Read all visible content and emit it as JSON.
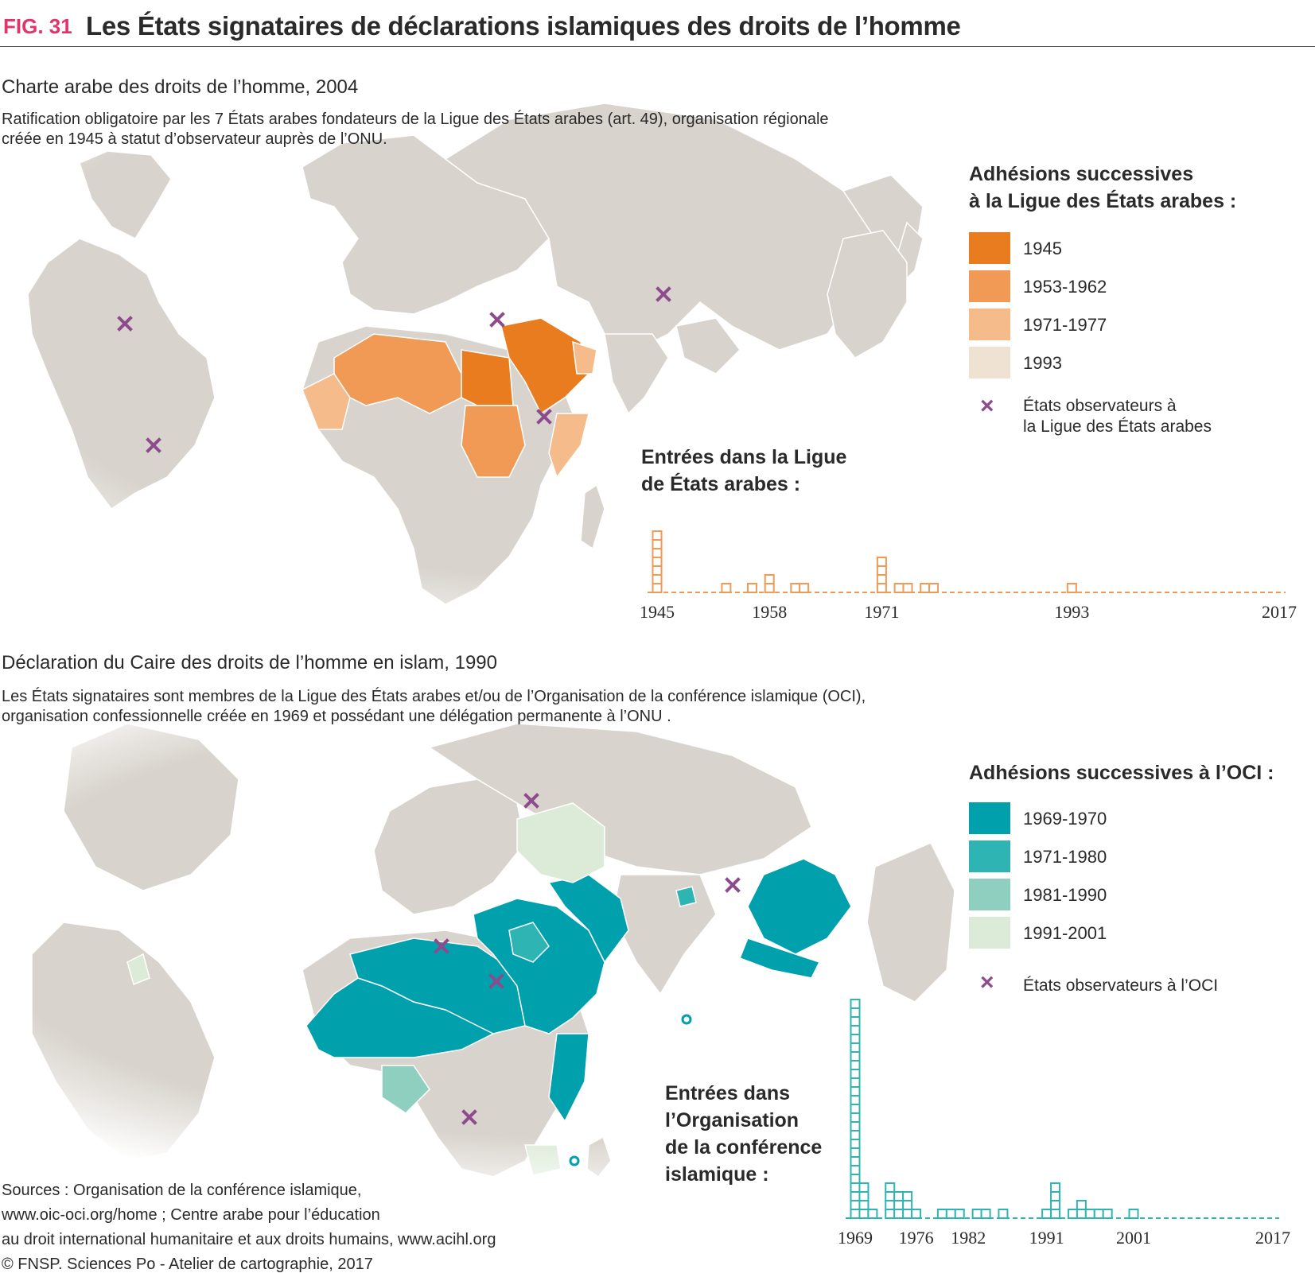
{
  "header": {
    "fig_label": "FIG. 31",
    "title": "Les États signataires de déclarations islamiques des droits de l’homme"
  },
  "section1": {
    "title": "Charte arabe des droits de l’homme, 2004",
    "desc_line1": "Ratification obligatoire par les 7 États arabes fondateurs de la Ligue des États arabes (art. 49), organisation régionale",
    "desc_line2": "créée en 1945 à statut d’observateur auprès de l’ONU.",
    "legend_title_line1": "Adhésions successives",
    "legend_title_line2": "à la Ligue des États arabes :",
    "legend_items": [
      {
        "label": "1945",
        "color": "#e87c1e"
      },
      {
        "label": "1953-1962",
        "color": "#f09a55"
      },
      {
        "label": "1971-1977",
        "color": "#f5bb8b"
      },
      {
        "label": "1993",
        "color": "#f0e2d2"
      }
    ],
    "observer_label_line1": "États observateurs à",
    "observer_label_line2": "la Ligue des États arabes",
    "map_colors": {
      "land": "#d8d3cc",
      "observer": "#8d4b8e"
    }
  },
  "section2": {
    "title": "Déclaration du Caire des droits de l’homme en islam, 1990",
    "desc_line1": "Les États signataires sont membres de la Ligue des États arabes et/ou de l’Organisation de la conférence islamique (OCI),",
    "desc_line2": "organisation confessionnelle créée en 1969 et possédant une délégation permanente à l’ONU .",
    "legend_title": "Adhésions successives à l’OCI :",
    "legend_items": [
      {
        "label": "1969-1970",
        "color": "#00a0ad"
      },
      {
        "label": "1971-1980",
        "color": "#2fb4b4"
      },
      {
        "label": "1981-1990",
        "color": "#8ecfbf"
      },
      {
        "label": "1991-2001",
        "color": "#dcebd8"
      }
    ],
    "observer_label": "États observateurs à l’OCI"
  },
  "chart_data": [
    {
      "type": "bar",
      "title": "Entrées dans la Ligue de États arabes :",
      "title_line1": "Entrées dans la Ligue",
      "title_line2": "de États arabes :",
      "color": "#f09a55",
      "xlim": [
        1945,
        2017
      ],
      "x_ticks": [
        1945,
        1958,
        1971,
        1993,
        2017
      ],
      "x": [
        1945,
        1953,
        1956,
        1958,
        1961,
        1962,
        1971,
        1973,
        1974,
        1976,
        1977,
        1993
      ],
      "values": [
        7,
        1,
        1,
        2,
        1,
        1,
        4,
        1,
        1,
        1,
        1,
        1
      ]
    },
    {
      "type": "bar",
      "title": "Entrées dans l’Organisation de la conférence islamique :",
      "title_line1": "Entrées dans",
      "title_line2": "l’Organisation",
      "title_line3": "de la conférence",
      "title_line4": "islamique :",
      "color": "#2fb4b4",
      "xlim": [
        1969,
        2017
      ],
      "x_ticks": [
        1969,
        1976,
        1982,
        1991,
        2001,
        2017
      ],
      "x": [
        1969,
        1970,
        1971,
        1973,
        1974,
        1975,
        1976,
        1979,
        1980,
        1981,
        1983,
        1984,
        1986,
        1991,
        1992,
        1994,
        1995,
        1996,
        1997,
        1998,
        2001
      ],
      "values": [
        25,
        4,
        1,
        4,
        3,
        3,
        1,
        1,
        1,
        1,
        1,
        1,
        1,
        1,
        4,
        1,
        2,
        1,
        1,
        1,
        1
      ]
    }
  ],
  "sources": {
    "line1": "Sources : Organisation de la conférence islamique,",
    "line2": "www.oic-oci.org/home ; Centre arabe pour l’éducation",
    "line3": "au droit international humanitaire et aux droits humains, www.acihl.org",
    "line4": "© FNSP. Sciences Po - Atelier de cartographie, 2017"
  }
}
